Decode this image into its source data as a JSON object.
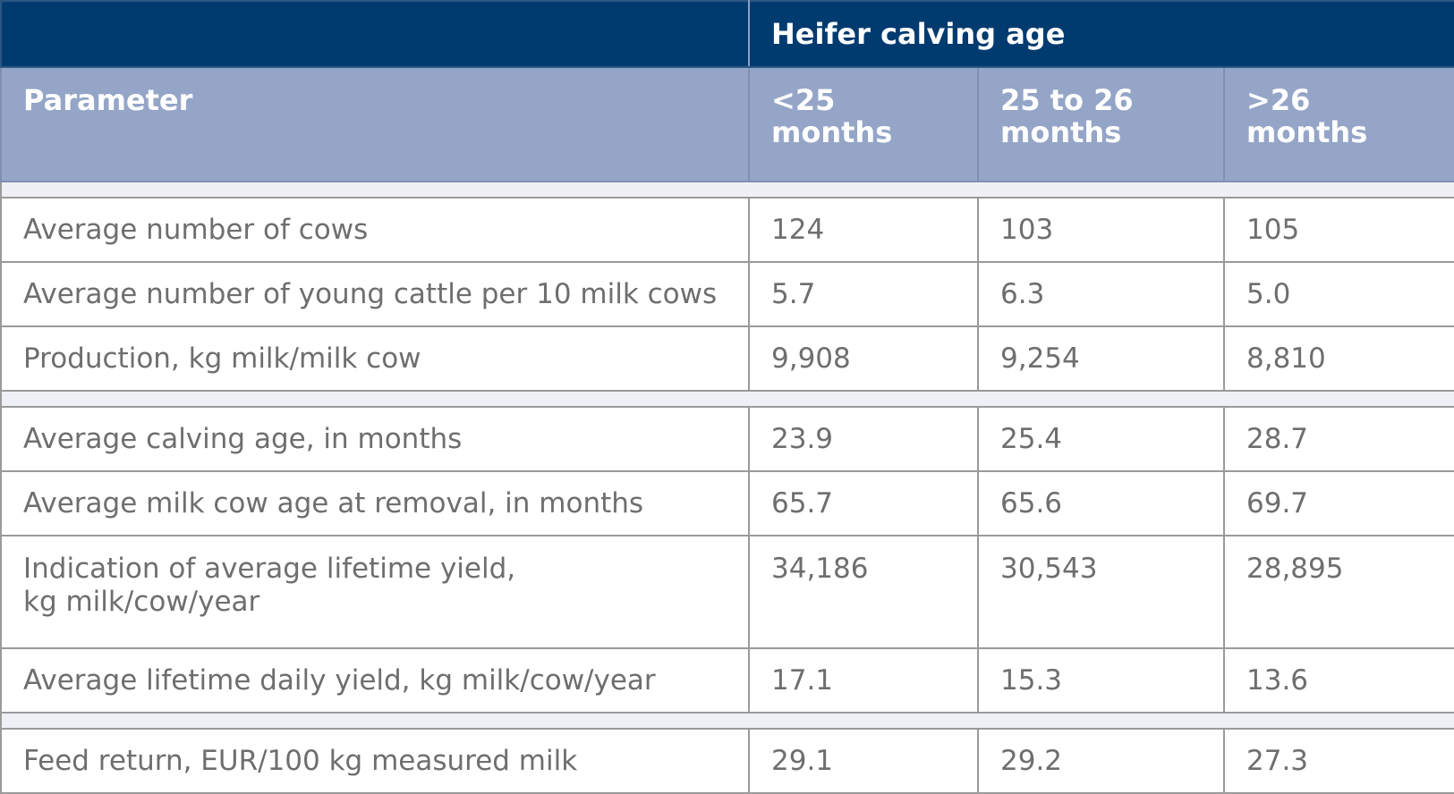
{
  "table": {
    "group_header": "Heifer calving age",
    "columns": [
      "Parameter",
      "<25 months",
      "25 to 26 months",
      ">26 months"
    ],
    "column_lines": [
      [
        "Parameter"
      ],
      [
        "<25",
        "months"
      ],
      [
        "25 to 26",
        "months"
      ],
      [
        ">26",
        "months"
      ]
    ],
    "sections": [
      {
        "rows": [
          {
            "label": [
              "Average number of cows"
            ],
            "values": [
              "124",
              "103",
              "105"
            ]
          },
          {
            "label": [
              "Average number of young cattle per 10 milk cows"
            ],
            "values": [
              "5.7",
              "6.3",
              "5.0"
            ]
          },
          {
            "label": [
              "Production, kg milk/milk cow"
            ],
            "values": [
              "9,908",
              "9,254",
              "8,810"
            ]
          }
        ]
      },
      {
        "rows": [
          {
            "label": [
              "Average calving age, in months"
            ],
            "values": [
              "23.9",
              "25.4",
              "28.7"
            ]
          },
          {
            "label": [
              "Average milk cow age at removal, in months"
            ],
            "values": [
              "65.7",
              "65.6",
              "69.7"
            ]
          },
          {
            "label": [
              "Indication of average lifetime yield,",
              "kg milk/cow/year"
            ],
            "values": [
              "34,186",
              "30,543",
              "28,895"
            ]
          },
          {
            "label": [
              "Average lifetime daily yield, kg milk/cow/year"
            ],
            "values": [
              "17.1",
              "15.3",
              "13.6"
            ]
          }
        ]
      },
      {
        "rows": [
          {
            "label": [
              "Feed return, EUR/100 kg measured milk"
            ],
            "values": [
              "29.1",
              "29.2",
              "27.3"
            ]
          }
        ]
      }
    ]
  }
}
